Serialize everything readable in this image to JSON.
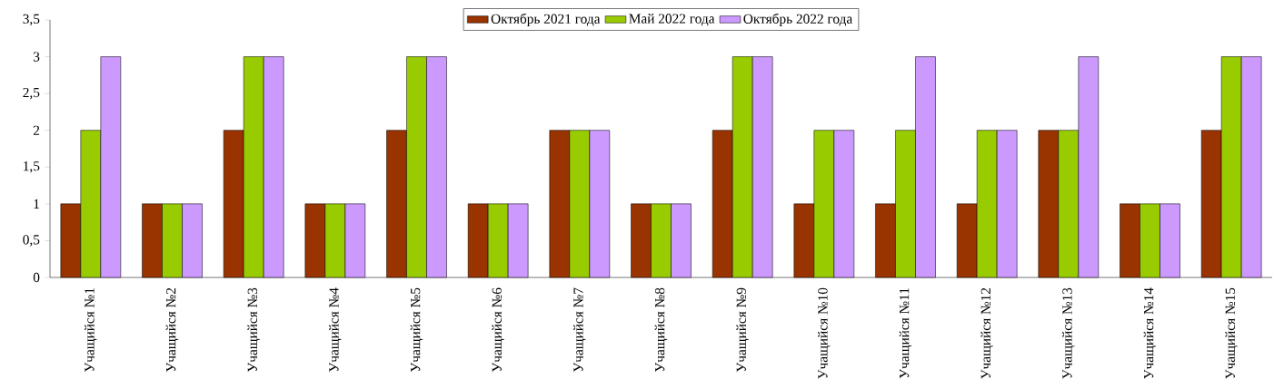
{
  "chart_data": {
    "type": "bar",
    "categories": [
      "Учащийся №1",
      "Учащийся №2",
      "Учащийся №3",
      "Учащийся №4",
      "Учащийся №5",
      "Учащийся №6",
      "Учащийся №7",
      "Учащийся №8",
      "Учащийся №9",
      "Учащийся №10",
      "Учащийся №11",
      "Учащийся №12",
      "Учащийся №13",
      "Учащийся №14",
      "Учащийся №15"
    ],
    "series": [
      {
        "name": "Октябрь 2021 года",
        "color": "#993300",
        "values": [
          1,
          1,
          2,
          1,
          2,
          1,
          2,
          1,
          2,
          1,
          1,
          1,
          2,
          1,
          2
        ]
      },
      {
        "name": "Май 2022 года",
        "color": "#99cc00",
        "values": [
          2,
          1,
          3,
          1,
          3,
          1,
          2,
          1,
          3,
          2,
          2,
          2,
          2,
          1,
          3
        ]
      },
      {
        "name": "Октябрь 2022 года",
        "color": "#cc99ff",
        "values": [
          3,
          1,
          3,
          1,
          3,
          1,
          2,
          1,
          3,
          2,
          3,
          2,
          3,
          1,
          3
        ]
      }
    ],
    "ylim": [
      0,
      3.5
    ],
    "yticks": [
      0,
      {
        "value": 0.5,
        "label": "0,5"
      },
      1,
      {
        "value": 1.5,
        "label": "1,5"
      },
      2,
      {
        "value": 2.5,
        "label": "2,5"
      },
      3,
      {
        "value": 3.5,
        "label": "3,5"
      }
    ],
    "legend": "top",
    "grid": false
  }
}
